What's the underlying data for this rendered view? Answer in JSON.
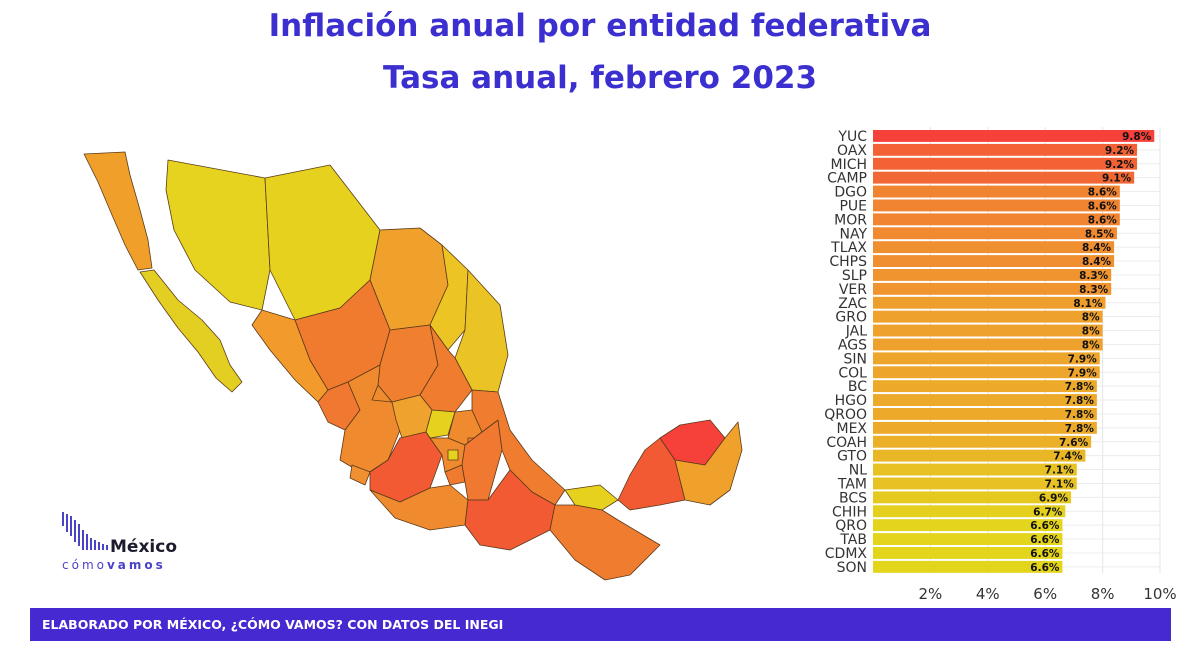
{
  "title": "Inflación anual por entidad federativa",
  "subtitle": "Tasa anual, febrero 2023",
  "logo": {
    "word": "México",
    "sub_light": "cómo",
    "sub_bold": "vamos"
  },
  "footer": "ELABORADO POR MÉXICO, ¿CÓMO VAMOS? CON DATOS DEL INEGI",
  "colors": {
    "title": "#3b2fd0",
    "footer_bg": "#4729d2",
    "high": "#f5413a",
    "mid": "#ef9a2e",
    "low": "#e3d41c"
  },
  "chart_data": {
    "type": "bar",
    "orientation": "horizontal",
    "title": "Inflación anual por entidad federativa",
    "subtitle": "Tasa anual, febrero 2023",
    "xlabel": "",
    "ylabel": "",
    "xlim": [
      0,
      10
    ],
    "x_ticks": [
      "2%",
      "4%",
      "6%",
      "8%",
      "10%"
    ],
    "grid": true,
    "categories": [
      "YUC",
      "OAX",
      "MICH",
      "CAMP",
      "DGO",
      "PUE",
      "MOR",
      "NAY",
      "TLAX",
      "CHPS",
      "SLP",
      "VER",
      "ZAC",
      "GRO",
      "JAL",
      "AGS",
      "SIN",
      "COL",
      "BC",
      "HGO",
      "QROO",
      "MEX",
      "COAH",
      "GTO",
      "NL",
      "TAM",
      "BCS",
      "CHIH",
      "QRO",
      "TAB",
      "CDMX",
      "SON"
    ],
    "values": [
      9.8,
      9.2,
      9.2,
      9.1,
      8.6,
      8.6,
      8.6,
      8.5,
      8.4,
      8.4,
      8.3,
      8.3,
      8.1,
      8,
      8,
      8,
      7.9,
      7.9,
      7.8,
      7.8,
      7.8,
      7.8,
      7.6,
      7.4,
      7.1,
      7.1,
      6.9,
      6.7,
      6.6,
      6.6,
      6.6,
      6.6
    ],
    "data_labels": [
      "9.8%",
      "9.2%",
      "9.2%",
      "9.1%",
      "8.6%",
      "8.6%",
      "8.6%",
      "8.5%",
      "8.4%",
      "8.4%",
      "8.3%",
      "8.3%",
      "8.1%",
      "8%",
      "8%",
      "8%",
      "7.9%",
      "7.9%",
      "7.8%",
      "7.8%",
      "7.8%",
      "7.8%",
      "7.6%",
      "7.4%",
      "7.1%",
      "7.1%",
      "6.9%",
      "6.7%",
      "6.6%",
      "6.6%",
      "6.6%",
      "6.6%"
    ]
  }
}
